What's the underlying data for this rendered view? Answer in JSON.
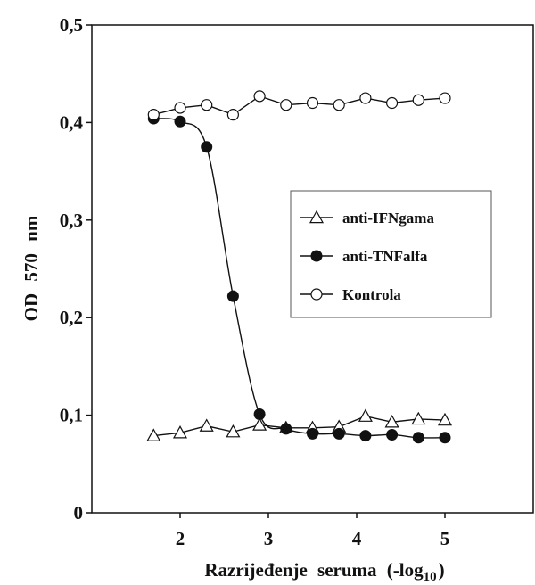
{
  "chart_data": {
    "type": "line",
    "xlabel": "Razrijeđenje seruma (-log",
    "xlabel_sub": "10",
    "xlabel_close": ")",
    "ylabel": "OD 570 nm",
    "xlim": [
      1,
      6
    ],
    "ylim": [
      0,
      0.5
    ],
    "xticks": [
      2,
      3,
      4,
      5
    ],
    "xtick_labels": [
      "2",
      "3",
      "4",
      "5"
    ],
    "yticks": [
      0,
      0.1,
      0.2,
      0.3,
      0.4,
      0.5
    ],
    "ytick_labels": [
      "0",
      "0,1",
      "0,2",
      "0,3",
      "0,4",
      "0,5"
    ],
    "grid": false,
    "legend_position": "center-right",
    "series": [
      {
        "name": "anti-IFNgama",
        "marker": "triangle-open",
        "smooth": false,
        "x": [
          1.7,
          2.0,
          2.3,
          2.6,
          2.9,
          3.2,
          3.5,
          3.8,
          4.1,
          4.4,
          4.7,
          5.0
        ],
        "y": [
          0.079,
          0.082,
          0.089,
          0.083,
          0.09,
          0.087,
          0.087,
          0.088,
          0.099,
          0.093,
          0.096,
          0.095
        ]
      },
      {
        "name": "anti-TNFalfa",
        "marker": "circle-filled",
        "smooth": true,
        "x": [
          1.7,
          2.0,
          2.3,
          2.6,
          2.9,
          3.2,
          3.5,
          3.8,
          4.1,
          4.4,
          4.7,
          5.0
        ],
        "y": [
          0.404,
          0.401,
          0.375,
          0.222,
          0.101,
          0.086,
          0.081,
          0.081,
          0.079,
          0.08,
          0.077,
          0.077
        ]
      },
      {
        "name": "Kontrola",
        "marker": "circle-open",
        "smooth": false,
        "x": [
          1.7,
          2.0,
          2.3,
          2.6,
          2.9,
          3.2,
          3.5,
          3.8,
          4.1,
          4.4,
          4.7,
          5.0
        ],
        "y": [
          0.408,
          0.415,
          0.418,
          0.408,
          0.427,
          0.418,
          0.42,
          0.418,
          0.425,
          0.42,
          0.423,
          0.425
        ]
      }
    ]
  }
}
